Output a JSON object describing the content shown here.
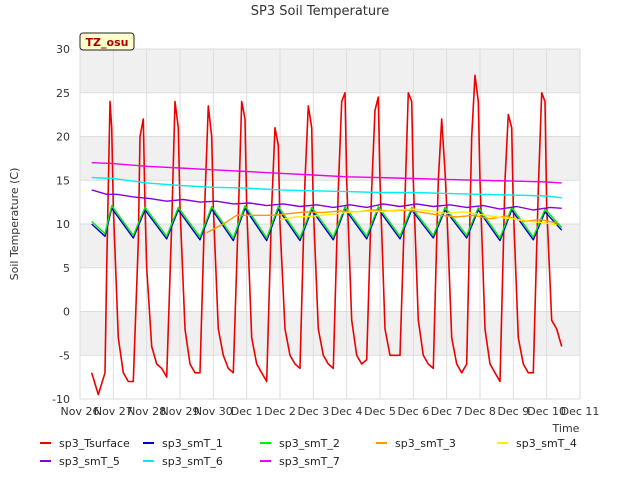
{
  "chart_data": {
    "type": "line",
    "title": "SP3 Soil Temperature",
    "xlabel": "Time",
    "ylabel": "Soil Temperature (C)",
    "ylim": [
      -10,
      30
    ],
    "xlim": [
      0,
      15
    ],
    "yticks": [
      -10,
      -5,
      0,
      5,
      10,
      15,
      20,
      25,
      30
    ],
    "xtick_labels": [
      "Nov 26",
      "Nov 27",
      "Nov 28",
      "Nov 29",
      "Nov 30",
      "Dec 1",
      "Dec 2",
      "Dec 3",
      "Dec 4",
      "Dec 5",
      "Dec 6",
      "Dec 7",
      "Dec 8",
      "Dec 9",
      "Dec 10",
      "Dec 11"
    ],
    "grid": true,
    "legend_placement": "bottom",
    "badge": "TZ_osu",
    "series": [
      {
        "name": "sp3_Tsurface",
        "color": "#ee0000",
        "x": [
          0.35,
          0.55,
          0.75,
          0.8,
          0.9,
          0.95,
          1.0,
          1.15,
          1.3,
          1.45,
          1.6,
          1.75,
          1.8,
          1.9,
          1.95,
          2.0,
          2.15,
          2.3,
          2.45,
          2.6,
          2.75,
          2.85,
          2.95,
          3.0,
          3.15,
          3.3,
          3.45,
          3.6,
          3.75,
          3.85,
          3.95,
          4.0,
          4.15,
          4.3,
          4.45,
          4.6,
          4.75,
          4.85,
          4.95,
          5.0,
          5.15,
          5.3,
          5.45,
          5.6,
          5.75,
          5.85,
          5.95,
          6.0,
          6.15,
          6.3,
          6.45,
          6.6,
          6.75,
          6.85,
          6.95,
          7.0,
          7.15,
          7.3,
          7.45,
          7.6,
          7.75,
          7.85,
          7.95,
          8.0,
          8.15,
          8.3,
          8.45,
          8.6,
          8.75,
          8.85,
          8.95,
          9.0,
          9.15,
          9.3,
          9.45,
          9.6,
          9.75,
          9.85,
          9.95,
          10.0,
          10.15,
          10.3,
          10.45,
          10.6,
          10.75,
          10.85,
          10.95,
          11.0,
          11.15,
          11.3,
          11.45,
          11.6,
          11.75,
          11.85,
          11.95,
          12.0,
          12.15,
          12.3,
          12.45,
          12.6,
          12.75,
          12.85,
          12.95,
          13.0,
          13.15,
          13.3,
          13.45,
          13.6,
          13.75,
          13.85,
          13.95,
          14.0,
          14.15,
          14.3,
          14.45
        ],
        "values": [
          -7,
          -9.5,
          -7,
          5,
          24,
          21,
          12,
          -3,
          -7,
          -8,
          -8,
          8,
          20,
          22,
          12,
          5,
          -4,
          -6,
          -6.5,
          -7.5,
          10,
          24,
          21,
          12,
          -2,
          -6,
          -7,
          -7,
          13,
          23.5,
          20,
          12,
          -2,
          -5,
          -6.5,
          -7,
          11,
          24,
          22,
          12,
          -3,
          -6,
          -7,
          -8,
          12,
          21,
          19,
          10,
          -2,
          -5,
          -6,
          -6.5,
          15,
          23.5,
          21,
          12,
          -2,
          -5,
          -6,
          -6.5,
          14,
          24,
          25,
          15,
          -1,
          -5,
          -6,
          -5.5,
          14,
          23,
          24.5,
          15,
          -2,
          -5,
          -5,
          -5,
          13,
          25,
          24,
          15,
          -1,
          -5,
          -6,
          -6.5,
          15,
          22,
          16,
          12,
          -3,
          -6,
          -7,
          -6,
          20,
          27,
          24,
          15,
          -2,
          -6,
          -7,
          -8,
          15,
          22.5,
          21,
          12,
          -3,
          -6,
          -7,
          -7,
          14,
          25,
          24,
          12,
          -1,
          -2,
          -4
        ]
      },
      {
        "name": "sp3_smT_1",
        "color": "#0000cc",
        "x": [
          0.35,
          0.75,
          0.95,
          1.6,
          1.95,
          2.6,
          2.95,
          3.6,
          3.95,
          4.6,
          4.95,
          5.6,
          5.95,
          6.6,
          6.95,
          7.6,
          7.95,
          8.6,
          8.95,
          9.6,
          9.95,
          10.6,
          10.95,
          11.6,
          11.95,
          12.6,
          12.95,
          13.6,
          13.95,
          14.45
        ],
        "values": [
          10,
          8.6,
          11.8,
          8.4,
          11.6,
          8.3,
          11.6,
          8.2,
          11.7,
          8.1,
          11.8,
          8.1,
          11.7,
          8.1,
          11.6,
          8.2,
          11.7,
          8.3,
          11.7,
          8.3,
          11.6,
          8.4,
          11.6,
          8.4,
          11.6,
          8.1,
          11.6,
          8.2,
          11.4,
          9.3
        ]
      },
      {
        "name": "sp3_smT_2",
        "color": "#00ee00",
        "x": [
          0.35,
          0.75,
          0.95,
          1.6,
          1.95,
          2.6,
          2.95,
          3.6,
          3.95,
          4.6,
          4.95,
          5.6,
          5.95,
          6.6,
          6.95,
          7.6,
          7.95,
          8.6,
          8.95,
          9.6,
          9.95,
          10.6,
          10.95,
          11.6,
          11.95,
          12.6,
          12.95,
          13.6,
          13.95,
          14.45
        ],
        "values": [
          10.3,
          8.9,
          12.1,
          8.7,
          11.9,
          8.6,
          11.9,
          8.5,
          12,
          8.4,
          12.1,
          8.4,
          12,
          8.4,
          11.9,
          8.5,
          12,
          8.6,
          12,
          8.6,
          11.9,
          8.7,
          11.9,
          8.7,
          11.9,
          8.4,
          11.9,
          8.5,
          11.7,
          9.6
        ]
      },
      {
        "name": "sp3_smT_3",
        "color": "#ff9900",
        "x": [
          3.8,
          4.3,
          4.7,
          5.3,
          5.8,
          6.3,
          6.8,
          7.3,
          7.8,
          8.3,
          8.8,
          9.3,
          9.8,
          10.3,
          10.8,
          11.3,
          11.8,
          12.3,
          12.8,
          13.3,
          13.8,
          14.3
        ],
        "values": [
          9,
          10,
          11,
          11,
          11,
          11.2,
          11.4,
          11.3,
          11.5,
          11.4,
          11.6,
          11.5,
          11.6,
          11.3,
          11,
          10.8,
          11,
          10.6,
          10.9,
          10.3,
          10.5,
          10.1
        ]
      },
      {
        "name": "sp3_smT_4",
        "color": "#ffee00",
        "x": [
          6.0,
          6.5,
          7.0,
          7.5,
          8.0,
          8.5,
          9.0,
          9.5,
          10.0,
          10.5,
          11.0,
          11.5,
          12.0,
          12.5,
          13.0,
          13.5,
          14.0,
          14.3
        ],
        "values": [
          10.5,
          10.8,
          10.9,
          11.1,
          11.3,
          11.5,
          11.4,
          11.6,
          11.7,
          11.5,
          11.2,
          11.4,
          11.1,
          10.8,
          10.6,
          10.3,
          10.1,
          9.9
        ]
      },
      {
        "name": "sp3_smT_5",
        "color": "#8800dd",
        "x": [
          0.35,
          0.8,
          1.1,
          1.6,
          2.1,
          2.6,
          3.1,
          3.6,
          4.1,
          4.6,
          5.1,
          5.6,
          6.1,
          6.6,
          7.1,
          7.6,
          8.1,
          8.6,
          9.1,
          9.6,
          10.1,
          10.6,
          11.1,
          11.6,
          12.1,
          12.6,
          13.1,
          13.6,
          14.1,
          14.45
        ],
        "values": [
          13.9,
          13.4,
          13.4,
          13.1,
          12.9,
          12.6,
          12.8,
          12.5,
          12.6,
          12.3,
          12.4,
          12.1,
          12.3,
          12,
          12.2,
          11.9,
          12.2,
          11.9,
          12.3,
          12,
          12.3,
          12,
          12.2,
          11.9,
          12.1,
          11.7,
          12,
          11.6,
          11.9,
          11.8
        ]
      },
      {
        "name": "sp3_smT_6",
        "color": "#00eeee",
        "x": [
          0.35,
          1.0,
          2.0,
          3.0,
          4.0,
          5.0,
          6.0,
          7.0,
          8.0,
          9.0,
          10.0,
          11.0,
          12.0,
          13.0,
          14.0,
          14.45
        ],
        "values": [
          15.3,
          15.2,
          14.7,
          14.4,
          14.2,
          14.1,
          13.9,
          13.8,
          13.7,
          13.6,
          13.6,
          13.5,
          13.4,
          13.3,
          13.2,
          13
        ]
      },
      {
        "name": "sp3_smT_7",
        "color": "#ee00ee",
        "x": [
          0.35,
          1.0,
          2.0,
          3.0,
          4.0,
          5.0,
          6.0,
          7.0,
          8.0,
          9.0,
          10.0,
          11.0,
          12.0,
          13.0,
          14.0,
          14.45
        ],
        "values": [
          17,
          16.9,
          16.6,
          16.4,
          16.2,
          16,
          15.8,
          15.6,
          15.4,
          15.3,
          15.2,
          15.1,
          15,
          14.9,
          14.8,
          14.7
        ]
      }
    ]
  }
}
